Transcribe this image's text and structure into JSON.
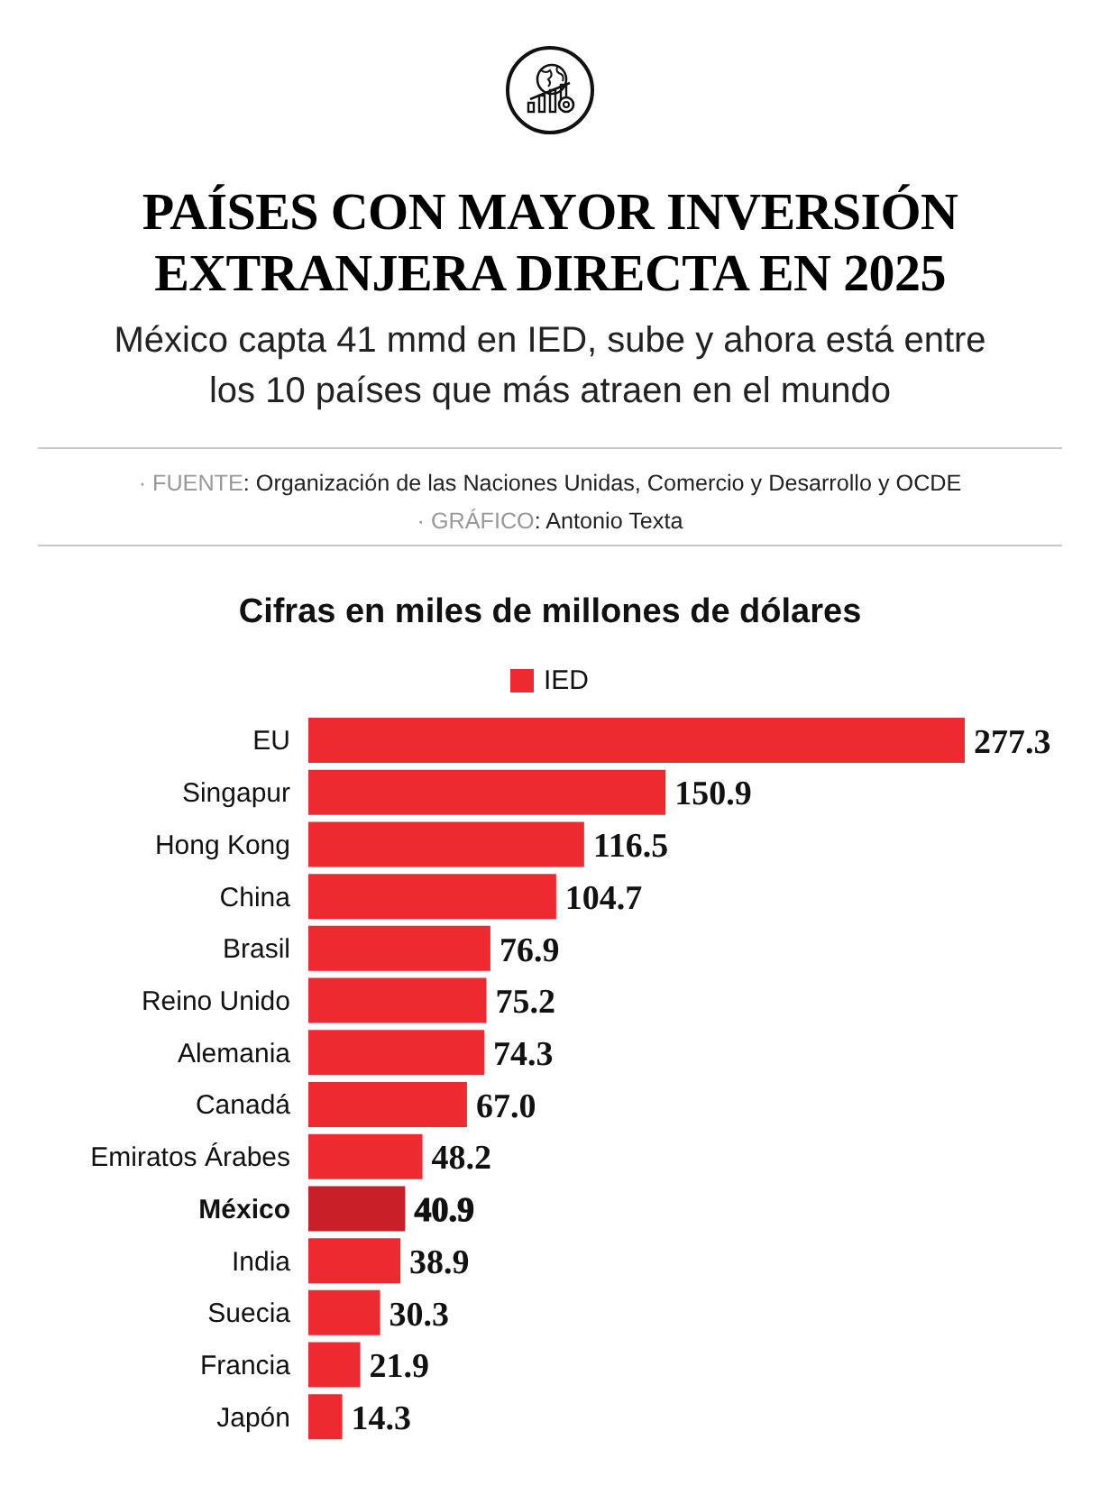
{
  "chart_data": {
    "type": "bar",
    "orientation": "horizontal",
    "title": "PAÍSES CON MAYOR INVERSIÓN EXTRANJERA DIRECTA EN 2025",
    "subtitle": "México capta 41 mmd en IED, sube y ahora está entre los 10 países que más atraen en el mundo",
    "xlabel": "Cifras en miles de millones de dólares",
    "annotations": [
      "· FUENTE: Organización de las Naciones Unidas, Comercio y Desarrollo y OCDE",
      "· GRÁFICO: Antonio Texta"
    ],
    "categories": [
      "EU",
      "Singapur",
      "Hong Kong",
      "China",
      "Brasil",
      "Reino Unido",
      "Alemania",
      "Canadá",
      "Emiratos Árabes",
      "México",
      "India",
      "Suecia",
      "Francia",
      "Japón"
    ],
    "series": [
      {
        "name": "IED",
        "color": "#ed2a30",
        "colors": [
          "#ed2a30",
          "#ed2a30",
          "#ed2a30",
          "#ed2a30",
          "#ed2a30",
          "#ed2a30",
          "#ed2a30",
          "#ed2a30",
          "#ed2a30",
          "#c91f28",
          "#ed2a30",
          "#ed2a30",
          "#ed2a30",
          "#ed2a30"
        ],
        "values": [
          277.3,
          150.9,
          116.5,
          104.7,
          76.9,
          75.2,
          74.3,
          67.0,
          48.2,
          40.9,
          38.9,
          30.3,
          21.9,
          14.3
        ],
        "value_labels": [
          "277.3",
          "150.9",
          "116.5",
          "104.7",
          "76.9",
          "75.2",
          "74.3",
          "67.0",
          "48.2",
          "40.9",
          "38.9",
          "30.3",
          "21.9",
          "14.3"
        ]
      }
    ],
    "legend": "top"
  }
}
